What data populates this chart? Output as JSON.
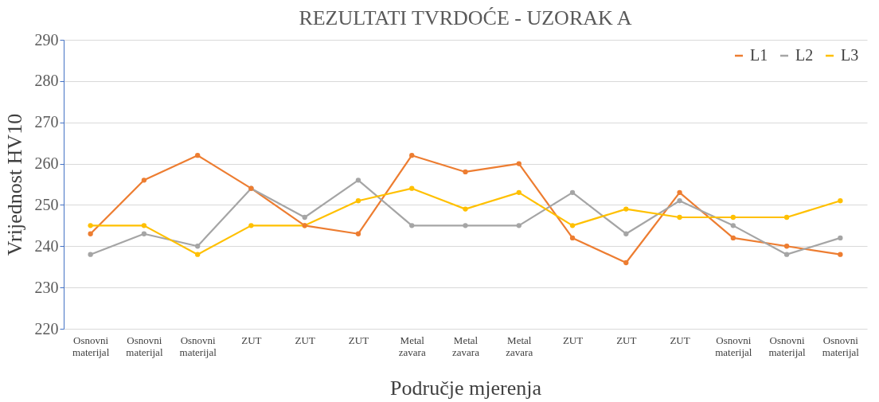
{
  "chart_data": {
    "type": "line",
    "title": "REZULTATI TVRDOĆE - UZORAK A",
    "xlabel": "Područje mjerenja",
    "ylabel": "Vrijednost HV10",
    "categories": [
      "Osnovni materijal",
      "Osnovni materijal",
      "Osnovni materijal",
      "ZUT",
      "ZUT",
      "ZUT",
      "Metal zavara",
      "Metal zavara",
      "Metal zavara",
      "ZUT",
      "ZUT",
      "ZUT",
      "Osnovni materijal",
      "Osnovni materijal",
      "Osnovni materijal"
    ],
    "series": [
      {
        "name": "L1",
        "color": "#ed7d31",
        "values": [
          243,
          256,
          262,
          254,
          245,
          243,
          262,
          258,
          260,
          242,
          236,
          253,
          242,
          240,
          238
        ]
      },
      {
        "name": "L2",
        "color": "#a5a5a5",
        "values": [
          238,
          243,
          240,
          254,
          247,
          256,
          245,
          245,
          245,
          253,
          243,
          251,
          245,
          238,
          242
        ]
      },
      {
        "name": "L3",
        "color": "#ffc000",
        "values": [
          245,
          245,
          238,
          245,
          245,
          251,
          254,
          249,
          253,
          245,
          249,
          247,
          247,
          247,
          251
        ]
      }
    ],
    "ylim": [
      220,
      290
    ],
    "yticks": [
      220,
      230,
      240,
      250,
      260,
      270,
      280,
      290
    ],
    "grid": "y",
    "legend": "top right",
    "marker": "circle",
    "line_style": "solid"
  }
}
